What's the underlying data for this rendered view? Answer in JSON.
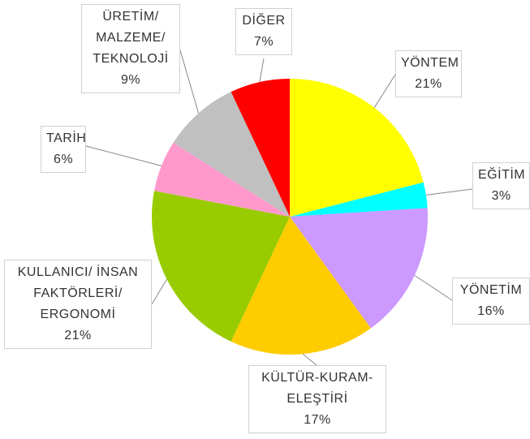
{
  "chart_data": {
    "type": "pie",
    "categories": [
      "YÖNTEM",
      "EĞİTİM",
      "YÖNETİM",
      "KÜLTÜR-KURAM-\nELEŞTİRİ",
      "KULLANICI/ İNSAN\nFAKTÖRLERİ/\nERGONOMİ",
      "TARİH",
      "ÜRETİM/\nMALZEME/\nTEKNOLOJİ",
      "DİĞER"
    ],
    "values": [
      21,
      3,
      16,
      17,
      21,
      6,
      9,
      7
    ],
    "value_labels": [
      "21%",
      "3%",
      "16%",
      "17%",
      "21%",
      "6%",
      "9%",
      "7%"
    ],
    "colors": [
      "#ffff00",
      "#00ffff",
      "#cc99ff",
      "#ffcc00",
      "#99cc00",
      "#ff99cc",
      "#c0c0c0",
      "#ff0000"
    ]
  }
}
